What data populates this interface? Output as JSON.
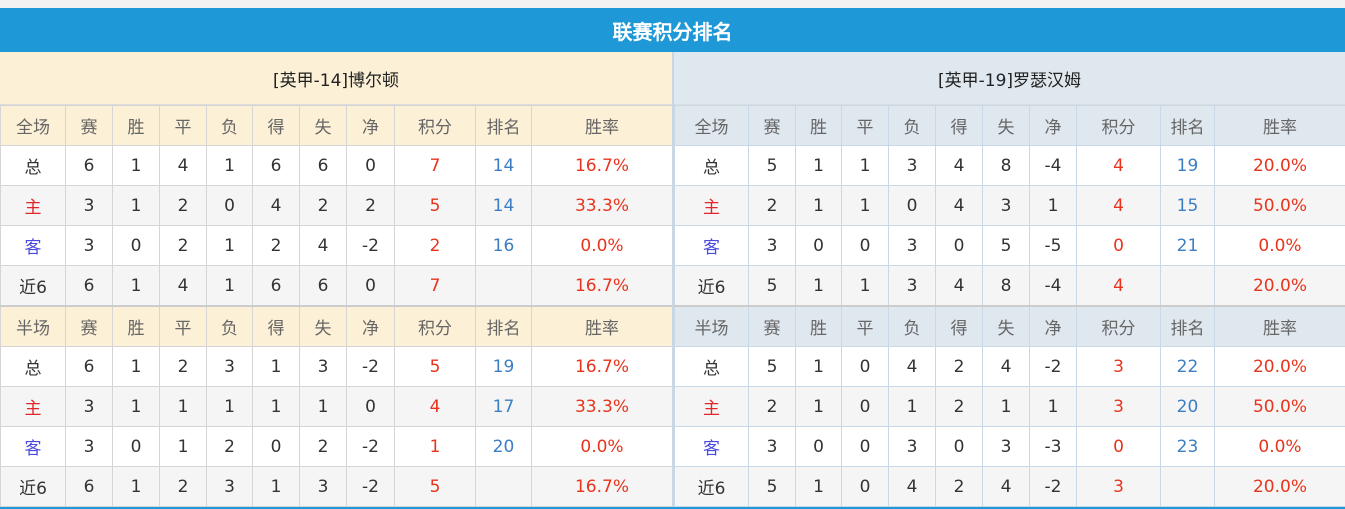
{
  "title": "联赛积分排名",
  "colors": {
    "header": "#1e98d7",
    "points": "#e8341c",
    "rank": "#3b7ec4"
  },
  "teams": [
    {
      "name": "[英甲-14]博尔顿",
      "full": {
        "header": [
          "全场",
          "赛",
          "胜",
          "平",
          "负",
          "得",
          "失",
          "净",
          "积分",
          "排名",
          "胜率"
        ],
        "rows": [
          [
            "总",
            "6",
            "1",
            "4",
            "1",
            "6",
            "6",
            "0",
            "7",
            "14",
            "16.7%"
          ],
          [
            "主",
            "3",
            "1",
            "2",
            "0",
            "4",
            "2",
            "2",
            "5",
            "14",
            "33.3%"
          ],
          [
            "客",
            "3",
            "0",
            "2",
            "1",
            "2",
            "4",
            "-2",
            "2",
            "16",
            "0.0%"
          ],
          [
            "近6",
            "6",
            "1",
            "4",
            "1",
            "6",
            "6",
            "0",
            "7",
            "",
            "16.7%"
          ]
        ]
      },
      "half": {
        "header": [
          "半场",
          "赛",
          "胜",
          "平",
          "负",
          "得",
          "失",
          "净",
          "积分",
          "排名",
          "胜率"
        ],
        "rows": [
          [
            "总",
            "6",
            "1",
            "2",
            "3",
            "1",
            "3",
            "-2",
            "5",
            "19",
            "16.7%"
          ],
          [
            "主",
            "3",
            "1",
            "1",
            "1",
            "1",
            "1",
            "0",
            "4",
            "17",
            "33.3%"
          ],
          [
            "客",
            "3",
            "0",
            "1",
            "2",
            "0",
            "2",
            "-2",
            "1",
            "20",
            "0.0%"
          ],
          [
            "近6",
            "6",
            "1",
            "2",
            "3",
            "1",
            "3",
            "-2",
            "5",
            "",
            "16.7%"
          ]
        ]
      }
    },
    {
      "name": "[英甲-19]罗瑟汉姆",
      "full": {
        "header": [
          "全场",
          "赛",
          "胜",
          "平",
          "负",
          "得",
          "失",
          "净",
          "积分",
          "排名",
          "胜率"
        ],
        "rows": [
          [
            "总",
            "5",
            "1",
            "1",
            "3",
            "4",
            "8",
            "-4",
            "4",
            "19",
            "20.0%"
          ],
          [
            "主",
            "2",
            "1",
            "1",
            "0",
            "4",
            "3",
            "1",
            "4",
            "15",
            "50.0%"
          ],
          [
            "客",
            "3",
            "0",
            "0",
            "3",
            "0",
            "5",
            "-5",
            "0",
            "21",
            "0.0%"
          ],
          [
            "近6",
            "5",
            "1",
            "1",
            "3",
            "4",
            "8",
            "-4",
            "4",
            "",
            "20.0%"
          ]
        ]
      },
      "half": {
        "header": [
          "半场",
          "赛",
          "胜",
          "平",
          "负",
          "得",
          "失",
          "净",
          "积分",
          "排名",
          "胜率"
        ],
        "rows": [
          [
            "总",
            "5",
            "1",
            "0",
            "4",
            "2",
            "4",
            "-2",
            "3",
            "22",
            "20.0%"
          ],
          [
            "主",
            "2",
            "1",
            "0",
            "1",
            "2",
            "1",
            "1",
            "3",
            "20",
            "50.0%"
          ],
          [
            "客",
            "3",
            "0",
            "0",
            "3",
            "0",
            "3",
            "-3",
            "0",
            "23",
            "0.0%"
          ],
          [
            "近6",
            "5",
            "1",
            "0",
            "4",
            "2",
            "4",
            "-2",
            "3",
            "",
            "20.0%"
          ]
        ]
      }
    }
  ]
}
